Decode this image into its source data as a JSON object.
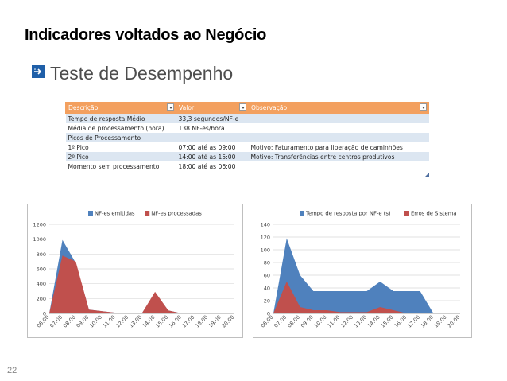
{
  "slide": {
    "title": "Indicadores voltados ao Negócio",
    "subtitle": "Teste de Desempenho",
    "page_number": "22"
  },
  "table": {
    "headers": [
      "Descrição",
      "Valor",
      "Observação"
    ],
    "rows": [
      [
        "Tempo de resposta Médio",
        "33,3 segundos/NF-e",
        ""
      ],
      [
        "Média de processamento (hora)",
        "138 NF-es/hora",
        ""
      ],
      [
        "Picos de Processamento",
        "",
        ""
      ],
      [
        "1º Pico",
        "07:00 até as 09:00",
        "Motivo: Faturamento para liberação de caminhões"
      ],
      [
        "2º Pico",
        "14:00 até as 15:00",
        "Motivo: Transferências entre centros produtivos"
      ],
      [
        "Momento sem processamento",
        "18:00 até as 06:00",
        ""
      ]
    ]
  },
  "chart_data": [
    {
      "type": "area",
      "x": [
        "06:00",
        "07:00",
        "08:00",
        "09:00",
        "10:00",
        "11:00",
        "12:00",
        "13:00",
        "14:00",
        "15:00",
        "16:00",
        "17:00",
        "18:00",
        "19:00",
        "20:00"
      ],
      "ylim": [
        0,
        1200
      ],
      "yticks": [
        0,
        200,
        400,
        600,
        800,
        1000,
        1200
      ],
      "series": [
        {
          "name": "NF-es emitidas",
          "color": "#4f81bd",
          "values": [
            0,
            990,
            680,
            50,
            30,
            10,
            0,
            0,
            280,
            40,
            0,
            0,
            0,
            0,
            0
          ]
        },
        {
          "name": "NF-es processadas",
          "color": "#c0504d",
          "values": [
            0,
            780,
            700,
            50,
            30,
            10,
            0,
            0,
            290,
            40,
            0,
            0,
            0,
            0,
            0
          ]
        }
      ],
      "legend": "top"
    },
    {
      "type": "area",
      "x": [
        "06:00",
        "07:00",
        "08:00",
        "09:00",
        "10:00",
        "11:00",
        "12:00",
        "13:00",
        "14:00",
        "15:00",
        "16:00",
        "17:00",
        "18:00",
        "19:00",
        "20:00"
      ],
      "ylim": [
        0,
        140
      ],
      "yticks": [
        0,
        20,
        40,
        60,
        80,
        100,
        120,
        140
      ],
      "series": [
        {
          "name": "Tempo de resposta por NF-e (s)",
          "color": "#4f81bd",
          "values": [
            0,
            118,
            60,
            35,
            35,
            35,
            35,
            35,
            50,
            35,
            35,
            35,
            0,
            0,
            0
          ]
        },
        {
          "name": "Erros de Sistema",
          "color": "#c0504d",
          "values": [
            0,
            50,
            10,
            5,
            5,
            2,
            2,
            2,
            10,
            5,
            0,
            0,
            0,
            0,
            0
          ]
        }
      ],
      "legend": "top"
    }
  ]
}
